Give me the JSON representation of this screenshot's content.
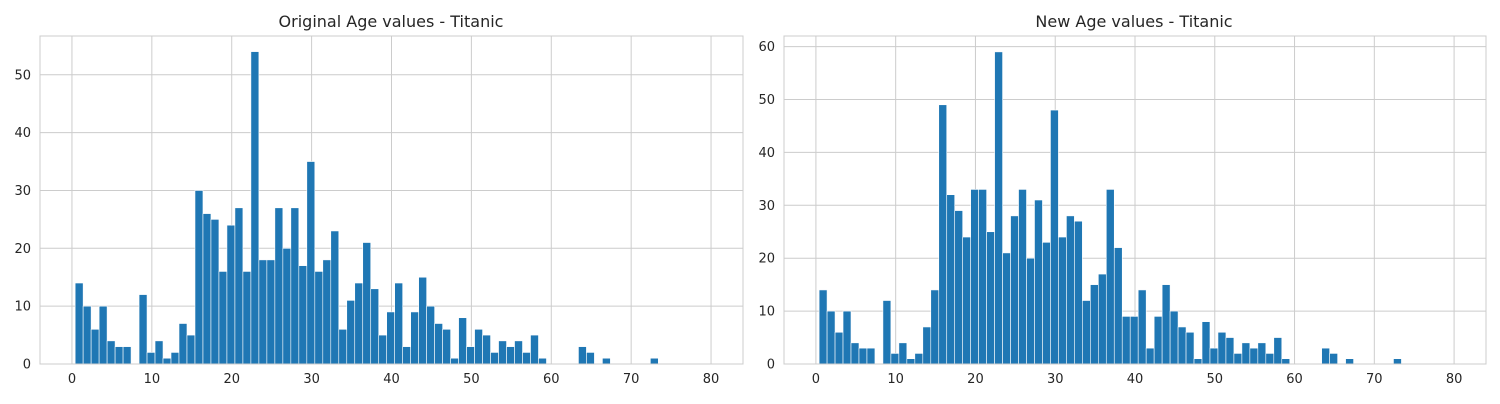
{
  "chart_data": [
    {
      "type": "bar",
      "title": "Original Age values - Titanic",
      "xlabel": "",
      "ylabel": "",
      "bin_width": 1.0,
      "xlim": [
        -4,
        84
      ],
      "ylim": [
        0,
        56.7
      ],
      "xticks": [
        0,
        10,
        20,
        30,
        40,
        50,
        60,
        70,
        80
      ],
      "yticks": [
        0,
        10,
        20,
        30,
        40,
        50
      ],
      "grid": true,
      "color": "#1f77b4",
      "bins": [
        {
          "x": 0.4,
          "value": 14
        },
        {
          "x": 1.4,
          "value": 10
        },
        {
          "x": 2.4,
          "value": 6
        },
        {
          "x": 3.4,
          "value": 10
        },
        {
          "x": 4.4,
          "value": 4
        },
        {
          "x": 5.4,
          "value": 3
        },
        {
          "x": 6.4,
          "value": 3
        },
        {
          "x": 7.4,
          "value": 0
        },
        {
          "x": 8.4,
          "value": 12
        },
        {
          "x": 9.4,
          "value": 2
        },
        {
          "x": 10.4,
          "value": 4
        },
        {
          "x": 11.4,
          "value": 1
        },
        {
          "x": 12.4,
          "value": 2
        },
        {
          "x": 13.4,
          "value": 7
        },
        {
          "x": 14.4,
          "value": 5
        },
        {
          "x": 15.4,
          "value": 30
        },
        {
          "x": 16.4,
          "value": 26
        },
        {
          "x": 17.4,
          "value": 25
        },
        {
          "x": 18.4,
          "value": 16
        },
        {
          "x": 19.4,
          "value": 24
        },
        {
          "x": 20.4,
          "value": 27
        },
        {
          "x": 21.4,
          "value": 16
        },
        {
          "x": 22.4,
          "value": 54
        },
        {
          "x": 23.4,
          "value": 18
        },
        {
          "x": 24.4,
          "value": 18
        },
        {
          "x": 25.4,
          "value": 27
        },
        {
          "x": 26.4,
          "value": 20
        },
        {
          "x": 27.4,
          "value": 27
        },
        {
          "x": 28.4,
          "value": 17
        },
        {
          "x": 29.4,
          "value": 35
        },
        {
          "x": 30.4,
          "value": 16
        },
        {
          "x": 31.4,
          "value": 18
        },
        {
          "x": 32.4,
          "value": 23
        },
        {
          "x": 33.4,
          "value": 6
        },
        {
          "x": 34.4,
          "value": 11
        },
        {
          "x": 35.4,
          "value": 14
        },
        {
          "x": 36.4,
          "value": 21
        },
        {
          "x": 37.4,
          "value": 13
        },
        {
          "x": 38.4,
          "value": 5
        },
        {
          "x": 39.4,
          "value": 9
        },
        {
          "x": 40.4,
          "value": 14
        },
        {
          "x": 41.4,
          "value": 3
        },
        {
          "x": 42.4,
          "value": 9
        },
        {
          "x": 43.4,
          "value": 15
        },
        {
          "x": 44.4,
          "value": 10
        },
        {
          "x": 45.4,
          "value": 7
        },
        {
          "x": 46.4,
          "value": 6
        },
        {
          "x": 47.4,
          "value": 1
        },
        {
          "x": 48.4,
          "value": 8
        },
        {
          "x": 49.4,
          "value": 3
        },
        {
          "x": 50.4,
          "value": 6
        },
        {
          "x": 51.4,
          "value": 5
        },
        {
          "x": 52.4,
          "value": 2
        },
        {
          "x": 53.4,
          "value": 4
        },
        {
          "x": 54.4,
          "value": 3
        },
        {
          "x": 55.4,
          "value": 4
        },
        {
          "x": 56.4,
          "value": 2
        },
        {
          "x": 57.4,
          "value": 5
        },
        {
          "x": 58.4,
          "value": 1
        },
        {
          "x": 59.4,
          "value": 0
        },
        {
          "x": 60.4,
          "value": 0
        },
        {
          "x": 61.4,
          "value": 0
        },
        {
          "x": 62.4,
          "value": 0
        },
        {
          "x": 63.4,
          "value": 3
        },
        {
          "x": 64.4,
          "value": 2
        },
        {
          "x": 65.4,
          "value": 0
        },
        {
          "x": 66.4,
          "value": 1
        },
        {
          "x": 67.4,
          "value": 0
        },
        {
          "x": 68.4,
          "value": 0
        },
        {
          "x": 69.4,
          "value": 0
        },
        {
          "x": 70.4,
          "value": 0
        },
        {
          "x": 71.4,
          "value": 0
        },
        {
          "x": 72.4,
          "value": 1
        }
      ]
    },
    {
      "type": "bar",
      "title": "New Age values - Titanic",
      "xlabel": "",
      "ylabel": "",
      "bin_width": 1.0,
      "xlim": [
        -4,
        84
      ],
      "ylim": [
        0,
        62
      ],
      "xticks": [
        0,
        10,
        20,
        30,
        40,
        50,
        60,
        70,
        80
      ],
      "yticks": [
        0,
        10,
        20,
        30,
        40,
        50,
        60
      ],
      "grid": true,
      "color": "#1f77b4",
      "bins": [
        {
          "x": 0.4,
          "value": 14
        },
        {
          "x": 1.4,
          "value": 10
        },
        {
          "x": 2.4,
          "value": 6
        },
        {
          "x": 3.4,
          "value": 10
        },
        {
          "x": 4.4,
          "value": 4
        },
        {
          "x": 5.4,
          "value": 3
        },
        {
          "x": 6.4,
          "value": 3
        },
        {
          "x": 7.4,
          "value": 0
        },
        {
          "x": 8.4,
          "value": 12
        },
        {
          "x": 9.4,
          "value": 2
        },
        {
          "x": 10.4,
          "value": 4
        },
        {
          "x": 11.4,
          "value": 1
        },
        {
          "x": 12.4,
          "value": 2
        },
        {
          "x": 13.4,
          "value": 7
        },
        {
          "x": 14.4,
          "value": 14
        },
        {
          "x": 15.4,
          "value": 49
        },
        {
          "x": 16.4,
          "value": 32
        },
        {
          "x": 17.4,
          "value": 29
        },
        {
          "x": 18.4,
          "value": 24
        },
        {
          "x": 19.4,
          "value": 33
        },
        {
          "x": 20.4,
          "value": 33
        },
        {
          "x": 21.4,
          "value": 25
        },
        {
          "x": 22.4,
          "value": 59
        },
        {
          "x": 23.4,
          "value": 21
        },
        {
          "x": 24.4,
          "value": 28
        },
        {
          "x": 25.4,
          "value": 33
        },
        {
          "x": 26.4,
          "value": 20
        },
        {
          "x": 27.4,
          "value": 31
        },
        {
          "x": 28.4,
          "value": 23
        },
        {
          "x": 29.4,
          "value": 48
        },
        {
          "x": 30.4,
          "value": 24
        },
        {
          "x": 31.4,
          "value": 28
        },
        {
          "x": 32.4,
          "value": 27
        },
        {
          "x": 33.4,
          "value": 12
        },
        {
          "x": 34.4,
          "value": 15
        },
        {
          "x": 35.4,
          "value": 17
        },
        {
          "x": 36.4,
          "value": 33
        },
        {
          "x": 37.4,
          "value": 22
        },
        {
          "x": 38.4,
          "value": 9
        },
        {
          "x": 39.4,
          "value": 9
        },
        {
          "x": 40.4,
          "value": 14
        },
        {
          "x": 41.4,
          "value": 3
        },
        {
          "x": 42.4,
          "value": 9
        },
        {
          "x": 43.4,
          "value": 15
        },
        {
          "x": 44.4,
          "value": 10
        },
        {
          "x": 45.4,
          "value": 7
        },
        {
          "x": 46.4,
          "value": 6
        },
        {
          "x": 47.4,
          "value": 1
        },
        {
          "x": 48.4,
          "value": 8
        },
        {
          "x": 49.4,
          "value": 3
        },
        {
          "x": 50.4,
          "value": 6
        },
        {
          "x": 51.4,
          "value": 5
        },
        {
          "x": 52.4,
          "value": 2
        },
        {
          "x": 53.4,
          "value": 4
        },
        {
          "x": 54.4,
          "value": 3
        },
        {
          "x": 55.4,
          "value": 4
        },
        {
          "x": 56.4,
          "value": 2
        },
        {
          "x": 57.4,
          "value": 5
        },
        {
          "x": 58.4,
          "value": 1
        },
        {
          "x": 59.4,
          "value": 0
        },
        {
          "x": 60.4,
          "value": 0
        },
        {
          "x": 61.4,
          "value": 0
        },
        {
          "x": 62.4,
          "value": 0
        },
        {
          "x": 63.4,
          "value": 3
        },
        {
          "x": 64.4,
          "value": 2
        },
        {
          "x": 65.4,
          "value": 0
        },
        {
          "x": 66.4,
          "value": 1
        },
        {
          "x": 67.4,
          "value": 0
        },
        {
          "x": 68.4,
          "value": 0
        },
        {
          "x": 69.4,
          "value": 0
        },
        {
          "x": 70.4,
          "value": 0
        },
        {
          "x": 71.4,
          "value": 0
        },
        {
          "x": 72.4,
          "value": 1
        }
      ]
    }
  ]
}
